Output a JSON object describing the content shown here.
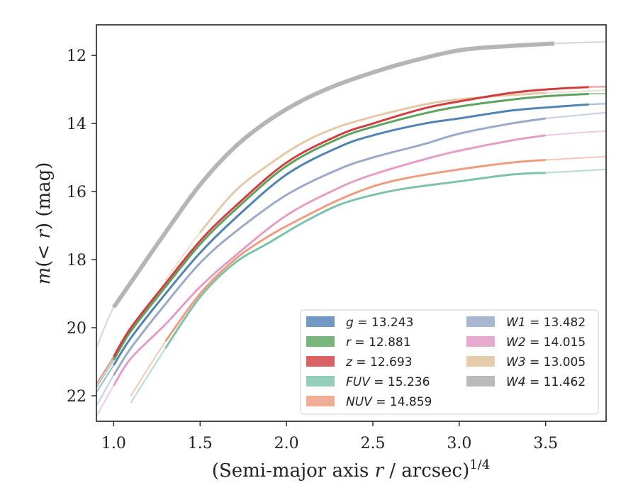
{
  "chart_data": {
    "type": "line",
    "xlabel": "(Semi-major axis r / arcsec)^1/4",
    "xlabel_parts": {
      "pre": "(Semi-major axis ",
      "var": "r",
      "mid": " / arcsec)",
      "sup": "1/4"
    },
    "ylabel": "m(< r) (mag)",
    "ylabel_parts": {
      "m": "m",
      "paren": "(< ",
      "var": "r",
      "close": ") (mag)"
    },
    "xlim": [
      0.9,
      3.85
    ],
    "ylim": [
      22.75,
      11.1
    ],
    "y_inverted": true,
    "xticks": [
      1.0,
      1.5,
      2.0,
      2.5,
      3.0,
      3.5
    ],
    "xtick_labels": [
      "1.0",
      "1.5",
      "2.0",
      "2.5",
      "3.0",
      "3.5"
    ],
    "yticks": [
      12,
      14,
      16,
      18,
      20,
      22
    ],
    "ytick_labels": [
      "12",
      "14",
      "16",
      "18",
      "20",
      "22"
    ],
    "grid": false,
    "legend_position": "lower-right",
    "series": [
      {
        "name": "g",
        "value": "13.243",
        "color": "#4c7fb0",
        "fill": "#6a93c1",
        "x": [
          0.9,
          1.0,
          1.1,
          1.3,
          1.5,
          1.7,
          2.0,
          2.3,
          2.5,
          2.8,
          3.0,
          3.3,
          3.5,
          3.75,
          3.85
        ],
        "y": [
          21.9,
          21.1,
          20.3,
          19.0,
          17.8,
          16.8,
          15.5,
          14.7,
          14.35,
          14.0,
          13.85,
          13.62,
          13.53,
          13.44,
          13.42
        ]
      },
      {
        "name": "r",
        "value": "12.881",
        "color": "#58a05c",
        "fill": "#72b276",
        "x": [
          0.9,
          1.0,
          1.1,
          1.3,
          1.5,
          1.7,
          2.0,
          2.3,
          2.5,
          2.8,
          3.0,
          3.3,
          3.5,
          3.75,
          3.85
        ],
        "y": [
          21.75,
          20.95,
          20.1,
          18.8,
          17.55,
          16.55,
          15.25,
          14.45,
          14.1,
          13.7,
          13.5,
          13.3,
          13.2,
          13.13,
          13.12
        ]
      },
      {
        "name": "z",
        "value": "12.693",
        "color": "#d0393b",
        "fill": "#d85a5c",
        "x": [
          0.9,
          1.0,
          1.1,
          1.3,
          1.5,
          1.7,
          2.0,
          2.3,
          2.5,
          2.8,
          3.0,
          3.3,
          3.5,
          3.75,
          3.85
        ],
        "y": [
          21.65,
          20.85,
          20.0,
          18.7,
          17.45,
          16.45,
          15.15,
          14.35,
          14.0,
          13.55,
          13.35,
          13.1,
          13.0,
          12.93,
          12.92
        ]
      },
      {
        "name": "FUV",
        "value": "15.236",
        "color": "#79bfa8",
        "fill": "#8fcbb7",
        "x": [
          1.1,
          1.3,
          1.5,
          1.7,
          1.9,
          2.1,
          2.3,
          2.5,
          2.7,
          3.0,
          3.3,
          3.5,
          3.85
        ],
        "y": [
          22.2,
          20.6,
          19.1,
          18.1,
          17.5,
          16.9,
          16.4,
          16.1,
          15.9,
          15.7,
          15.5,
          15.45,
          15.35
        ]
      },
      {
        "name": "NUV",
        "value": "14.859",
        "color": "#ec9a7c",
        "fill": "#efa98f",
        "x": [
          1.1,
          1.3,
          1.5,
          1.7,
          1.9,
          2.1,
          2.3,
          2.5,
          2.7,
          3.0,
          3.3,
          3.5,
          3.85
        ],
        "y": [
          22.0,
          20.4,
          19.0,
          18.0,
          17.3,
          16.75,
          16.25,
          15.85,
          15.6,
          15.35,
          15.15,
          15.07,
          14.97
        ]
      },
      {
        "name": "W1",
        "value": "13.482",
        "color": "#97a8c6",
        "fill": "#a3b2cd",
        "x": [
          0.9,
          1.0,
          1.1,
          1.3,
          1.5,
          1.7,
          2.0,
          2.3,
          2.5,
          2.8,
          3.0,
          3.3,
          3.5,
          3.85
        ],
        "y": [
          22.3,
          21.4,
          20.6,
          19.3,
          18.1,
          17.2,
          16.1,
          15.35,
          15.0,
          14.6,
          14.3,
          14.0,
          13.85,
          13.68
        ]
      },
      {
        "name": "W2",
        "value": "14.015",
        "color": "#e19cc4",
        "fill": "#e4a5cb",
        "x": [
          0.9,
          1.0,
          1.1,
          1.3,
          1.5,
          1.7,
          2.0,
          2.3,
          2.5,
          2.8,
          3.0,
          3.3,
          3.5,
          3.85
        ],
        "y": [
          22.6,
          21.7,
          20.9,
          19.9,
          18.8,
          17.9,
          16.7,
          15.9,
          15.5,
          15.05,
          14.8,
          14.5,
          14.35,
          14.22
        ]
      },
      {
        "name": "W3",
        "value": "13.005",
        "color": "#e2c7a5",
        "fill": "#e3c9a8",
        "x": [
          1.3,
          1.5,
          1.7,
          1.9,
          2.1,
          2.3,
          2.5,
          2.7,
          2.9,
          3.2,
          3.5,
          3.85
        ],
        "y": [
          18.6,
          17.2,
          16.0,
          15.2,
          14.55,
          14.1,
          13.8,
          13.55,
          13.35,
          13.2,
          13.1,
          13.02
        ]
      },
      {
        "name": "W4",
        "value": "11.462",
        "color": "#b2b2b2",
        "fill": "#b6b6b6",
        "x": [
          0.9,
          1.0,
          1.15,
          1.3,
          1.5,
          1.7,
          1.9,
          2.1,
          2.3,
          2.5,
          2.7,
          3.0,
          3.3,
          3.55,
          3.85
        ],
        "y": [
          20.6,
          19.4,
          18.3,
          17.2,
          15.8,
          14.7,
          13.9,
          13.3,
          12.85,
          12.5,
          12.2,
          11.85,
          11.72,
          11.65,
          11.6
        ]
      }
    ]
  }
}
